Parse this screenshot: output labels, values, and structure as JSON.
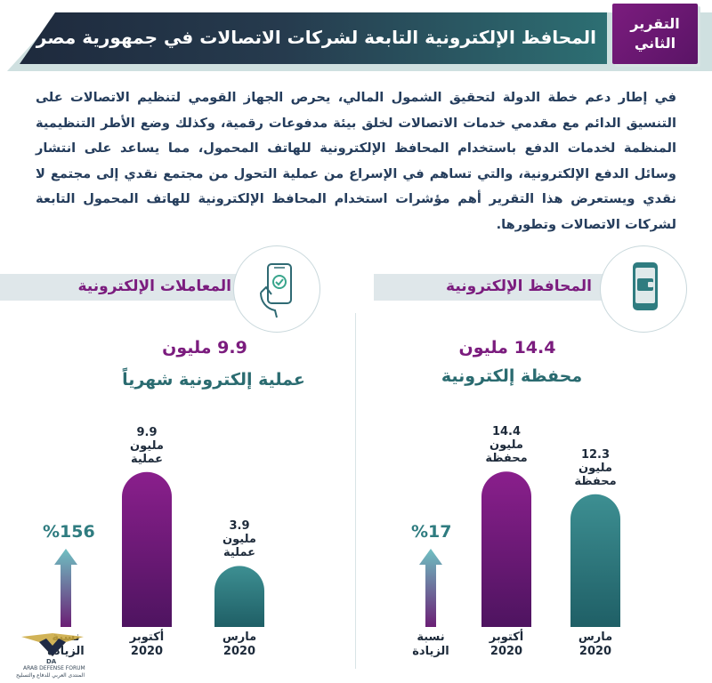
{
  "header": {
    "title": "المحافظ الإلكترونية التابعة لشركات الاتصالات في جمهورية مصر العربية",
    "report_tag_line1": "التقرير",
    "report_tag_line2": "الثاني"
  },
  "intro": "في إطار دعم خطة الدولة لتحقيق الشمول المالي، يحرص الجهاز القومي لتنظيم الاتصالات على التنسيق الدائم مع مقدمي خدمات الاتصالات لخلق بيئة مدفوعات رقمية، وكذلك وضع الأطر التنظيمية المنظمة لخدمات الدفع باستخدام المحافظ الإلكترونية للهاتف المحمول، مما يساعد على انتشار وسائل الدفع الإلكترونية، والتي تساهم في الإسراع من عملية التحول من مجتمع نقدي إلى مجتمع لا نقدي ويستعرض هذا التقرير أهم مؤشرات استخدام المحافظ الإلكترونية للهاتف المحمول التابعة لشركات الاتصالات وتطورها.",
  "sections": {
    "transactions": {
      "banner": "المعاملات الإلكترونية",
      "headline": "9.9 مليون",
      "subhead": "عملية إلكترونية شهرياً",
      "icon": "phone-checkmark-hand-icon"
    },
    "wallets": {
      "banner": "المحافظ الإلكترونية",
      "headline": "14.4 مليون",
      "subhead": "محفظة إلكترونية",
      "icon": "phone-wallet-icon"
    }
  },
  "chart_data": [
    {
      "type": "bar",
      "categories": [
        "أكتوبر 2020",
        "مارس 2020"
      ],
      "values": [
        9.9,
        3.9
      ],
      "unit": "مليون عملية",
      "bar_labels": [
        [
          "9.9",
          "مليون",
          "عملية"
        ],
        [
          "3.9",
          "مليون",
          "عملية"
        ]
      ],
      "category_labels": [
        [
          "أكتوبر",
          "2020"
        ],
        [
          "مارس",
          "2020"
        ]
      ],
      "increase_label": [
        "نسبة",
        "الزيادة"
      ],
      "increase_pct": "%156",
      "colors": {
        "current": "#7b1c7e",
        "previous": "#2f7c80"
      }
    },
    {
      "type": "bar",
      "categories": [
        "أكتوبر 2020",
        "مارس 2020"
      ],
      "values": [
        14.4,
        12.3
      ],
      "unit": "مليون محفظة",
      "bar_labels": [
        [
          "14.4",
          "مليون",
          "محفظة"
        ],
        [
          "12.3",
          "مليون",
          "محفظة"
        ]
      ],
      "category_labels": [
        [
          "أكتوبر",
          "2020"
        ],
        [
          "مارس",
          "2020"
        ]
      ],
      "increase_label": [
        "نسبة",
        "الزيادة"
      ],
      "increase_pct": "%17",
      "colors": {
        "current": "#7b1c7e",
        "previous": "#2f7c80"
      }
    }
  ],
  "watermark": {
    "abbr": "DA",
    "name": "ARAB DEFENSE FORUM",
    "tagline": "المنتدى العربي للدفاع والتسليح"
  }
}
